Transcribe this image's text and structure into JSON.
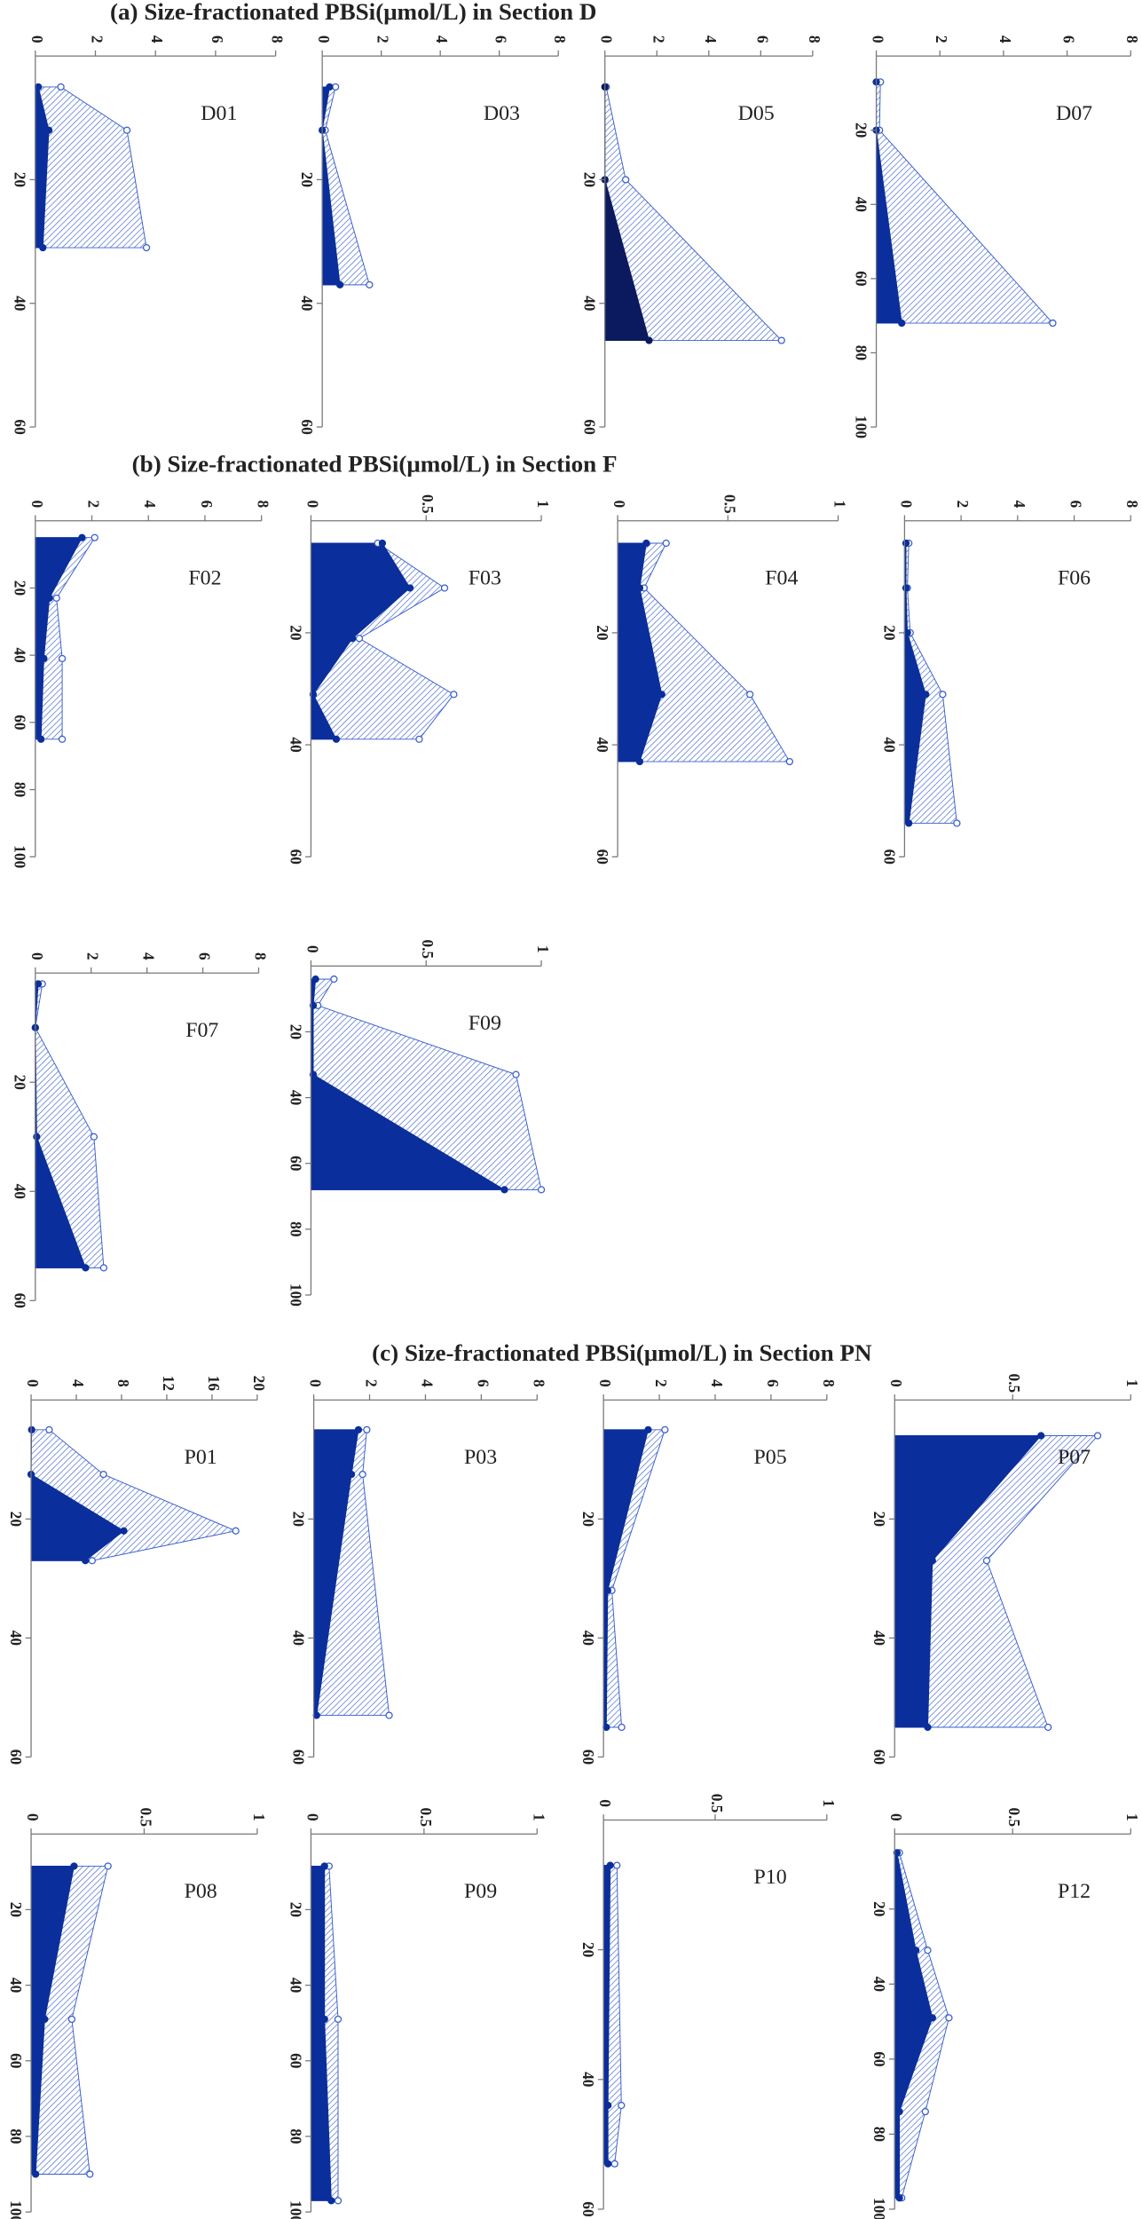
{
  "headers": [
    "(a) Size-fractionated PBSi(μmol/L) in Section D",
    "(b) Size-fractionated PBSi(μmol/L) in Section F",
    "(c) Size-fractionated PBSi(μmol/L) in Section PN"
  ],
  "chart_data": [
    {
      "type": "area",
      "title": "D01",
      "xlim": [
        0,
        8
      ],
      "xticks": [
        0,
        2,
        4,
        6,
        8
      ],
      "ylim": [
        0,
        60
      ],
      "yticks": [
        20,
        40,
        60
      ],
      "depth": [
        5,
        12,
        31
      ],
      "series": [
        {
          "color": "#3a5fcd",
          "hatch": true,
          "values": [
            0.85,
            3.05,
            3.7
          ]
        },
        {
          "color": "#0a2f9c",
          "hatch": false,
          "values": [
            0.1,
            0.45,
            0.25
          ]
        }
      ]
    },
    {
      "type": "area",
      "title": "D03",
      "xlim": [
        0,
        8
      ],
      "xticks": [
        0,
        2,
        4,
        6,
        8
      ],
      "ylim": [
        0,
        60
      ],
      "yticks": [
        20,
        40,
        60
      ],
      "depth": [
        5,
        12,
        37
      ],
      "series": [
        {
          "color": "#3a5fcd",
          "hatch": true,
          "values": [
            0.45,
            0.1,
            1.6
          ]
        },
        {
          "color": "#0a2f9c",
          "hatch": false,
          "values": [
            0.25,
            0,
            0.6
          ]
        }
      ]
    },
    {
      "type": "area",
      "title": "D05",
      "xlim": [
        0,
        8
      ],
      "xticks": [
        0,
        2,
        4,
        6,
        8
      ],
      "ylim": [
        0,
        60
      ],
      "yticks": [
        20,
        40,
        60
      ],
      "depth": [
        5,
        20,
        46
      ],
      "series": [
        {
          "color": "#3a5fcd",
          "hatch": true,
          "values": [
            0.05,
            0.8,
            6.8
          ]
        },
        {
          "color": "#0b1a5e",
          "hatch": false,
          "values": [
            0,
            0,
            1.7
          ]
        }
      ]
    },
    {
      "type": "area",
      "title": "D07",
      "xlim": [
        0,
        8
      ],
      "xticks": [
        0,
        2,
        4,
        6,
        8
      ],
      "ylim": [
        0,
        100
      ],
      "yticks": [
        20,
        40,
        60,
        80,
        100
      ],
      "depth": [
        7,
        20,
        72
      ],
      "series": [
        {
          "color": "#3a5fcd",
          "hatch": true,
          "values": [
            0.13,
            0.1,
            5.55
          ]
        },
        {
          "color": "#0a2f9c",
          "hatch": false,
          "values": [
            0,
            0,
            0.8
          ]
        }
      ]
    },
    {
      "type": "area",
      "title": "F02",
      "xlim": [
        0,
        8
      ],
      "xticks": [
        0,
        2,
        4,
        6,
        8
      ],
      "ylim": [
        0,
        100
      ],
      "yticks": [
        20,
        40,
        60,
        80,
        100
      ],
      "depth": [
        5,
        23,
        41,
        65
      ],
      "series": [
        {
          "color": "#3a5fcd",
          "hatch": true,
          "values": [
            2.1,
            0.75,
            0.95,
            0.95
          ]
        },
        {
          "color": "#0a2f9c",
          "hatch": false,
          "values": [
            1.65,
            0.5,
            0.3,
            0.2
          ]
        }
      ]
    },
    {
      "type": "area",
      "title": "F03",
      "xlim": [
        0,
        1
      ],
      "xticks": [
        0,
        0.5,
        1
      ],
      "ylim": [
        0,
        60
      ],
      "yticks": [
        20,
        40,
        60
      ],
      "depth": [
        4,
        12,
        21,
        31,
        39
      ],
      "series": [
        {
          "color": "#3a5fcd",
          "hatch": true,
          "values": [
            0.29,
            0.58,
            0.21,
            0.62,
            0.47
          ]
        },
        {
          "color": "#0a2f9c",
          "hatch": false,
          "values": [
            0.31,
            0.43,
            0.18,
            0.01,
            0.11
          ]
        }
      ]
    },
    {
      "type": "area",
      "title": "F04",
      "xlim": [
        0,
        1
      ],
      "xticks": [
        0,
        0.5,
        1
      ],
      "ylim": [
        0,
        60
      ],
      "yticks": [
        20,
        40,
        60
      ],
      "depth": [
        4,
        12,
        31,
        43
      ],
      "series": [
        {
          "color": "#3a5fcd",
          "hatch": true,
          "values": [
            0.22,
            0.12,
            0.6,
            0.78
          ]
        },
        {
          "color": "#0a2f9c",
          "hatch": false,
          "values": [
            0.13,
            0.1,
            0.2,
            0.1
          ]
        }
      ]
    },
    {
      "type": "area",
      "title": "F06",
      "xlim": [
        0,
        8
      ],
      "xticks": [
        0,
        2,
        4,
        6,
        8
      ],
      "ylim": [
        0,
        60
      ],
      "yticks": [
        20,
        40,
        60
      ],
      "depth": [
        4,
        12,
        20,
        31,
        54
      ],
      "series": [
        {
          "color": "#3a5fcd",
          "hatch": true,
          "values": [
            0.15,
            0.1,
            0.2,
            1.35,
            1.85
          ]
        },
        {
          "color": "#0a2f9c",
          "hatch": false,
          "values": [
            0.05,
            0.05,
            0.1,
            0.75,
            0.15
          ]
        }
      ]
    },
    {
      "type": "area",
      "title": "F07",
      "xlim": [
        0,
        8
      ],
      "xticks": [
        0,
        2,
        4,
        6,
        8
      ],
      "ylim": [
        0,
        60
      ],
      "yticks": [
        20,
        40,
        60
      ],
      "depth": [
        2,
        10,
        30,
        54
      ],
      "series": [
        {
          "color": "#3a5fcd",
          "hatch": true,
          "values": [
            0.25,
            0,
            2.1,
            2.45
          ]
        },
        {
          "color": "#0a2f9c",
          "hatch": false,
          "values": [
            0.1,
            0,
            0.05,
            1.8
          ]
        }
      ]
    },
    {
      "type": "area",
      "title": "F09",
      "xlim": [
        0,
        1
      ],
      "xticks": [
        0,
        0.5,
        1
      ],
      "ylim": [
        0,
        100
      ],
      "yticks": [
        20,
        40,
        60,
        80,
        100
      ],
      "depth": [
        4,
        12,
        33,
        68
      ],
      "series": [
        {
          "color": "#3a5fcd",
          "hatch": true,
          "values": [
            0.1,
            0.03,
            0.89,
            1.0
          ]
        },
        {
          "color": "#0a2f9c",
          "hatch": false,
          "values": [
            0.02,
            0.01,
            0.01,
            0.84
          ]
        }
      ]
    },
    {
      "type": "area",
      "title": "P01",
      "xlim": [
        0,
        20
      ],
      "xticks": [
        0,
        4,
        8,
        12,
        16,
        20
      ],
      "ylim": [
        0,
        60
      ],
      "yticks": [
        20,
        40,
        60
      ],
      "depth": [
        5,
        12.5,
        22,
        27
      ],
      "series": [
        {
          "color": "#3a5fcd",
          "hatch": true,
          "values": [
            1.6,
            6.4,
            18.1,
            5.4
          ]
        },
        {
          "color": "#0a2f9c",
          "hatch": false,
          "values": [
            0.05,
            0,
            8.2,
            4.8
          ]
        }
      ]
    },
    {
      "type": "area",
      "title": "P03",
      "xlim": [
        0,
        8
      ],
      "xticks": [
        0,
        2,
        4,
        6,
        8
      ],
      "ylim": [
        0,
        60
      ],
      "yticks": [
        20,
        40,
        60
      ],
      "depth": [
        5,
        12.5,
        53
      ],
      "series": [
        {
          "color": "#3a5fcd",
          "hatch": true,
          "values": [
            1.9,
            1.75,
            2.7
          ]
        },
        {
          "color": "#0a2f9c",
          "hatch": false,
          "values": [
            1.6,
            1.35,
            0.1
          ]
        }
      ]
    },
    {
      "type": "area",
      "title": "P05",
      "xlim": [
        0,
        8
      ],
      "xticks": [
        0,
        2,
        4,
        6,
        8
      ],
      "ylim": [
        0,
        60
      ],
      "yticks": [
        20,
        40,
        60
      ],
      "depth": [
        5,
        32,
        55
      ],
      "series": [
        {
          "color": "#3a5fcd",
          "hatch": true,
          "values": [
            2.2,
            0.3,
            0.65
          ]
        },
        {
          "color": "#0a2f9c",
          "hatch": false,
          "values": [
            1.6,
            0.15,
            0.1
          ]
        }
      ]
    },
    {
      "type": "area",
      "title": "P07",
      "xlim": [
        0,
        1
      ],
      "xticks": [
        0,
        0.5,
        1
      ],
      "ylim": [
        0,
        60
      ],
      "yticks": [
        20,
        40,
        60
      ],
      "depth": [
        6,
        27,
        55
      ],
      "series": [
        {
          "color": "#3a5fcd",
          "hatch": true,
          "values": [
            0.86,
            0.39,
            0.65
          ]
        },
        {
          "color": "#0a2f9c",
          "hatch": false,
          "values": [
            0.62,
            0.16,
            0.14
          ]
        }
      ]
    },
    {
      "type": "area",
      "title": "P08",
      "xlim": [
        0,
        1
      ],
      "xticks": [
        0,
        0.5,
        1
      ],
      "ylim": [
        0,
        100
      ],
      "yticks": [
        20,
        40,
        60,
        80,
        100
      ],
      "depth": [
        8.5,
        49,
        90
      ],
      "series": [
        {
          "color": "#3a5fcd",
          "hatch": true,
          "values": [
            0.34,
            0.18,
            0.26
          ]
        },
        {
          "color": "#0a2f9c",
          "hatch": false,
          "values": [
            0.19,
            0.06,
            0.02
          ]
        }
      ]
    },
    {
      "type": "area",
      "title": "P09",
      "xlim": [
        0,
        1
      ],
      "xticks": [
        0,
        0.5,
        1
      ],
      "ylim": [
        0,
        100
      ],
      "yticks": [
        20,
        40,
        60,
        80,
        100
      ],
      "depth": [
        8.5,
        49,
        97
      ],
      "series": [
        {
          "color": "#3a5fcd",
          "hatch": true,
          "values": [
            0.08,
            0.12,
            0.12
          ]
        },
        {
          "color": "#0a2f9c",
          "hatch": false,
          "values": [
            0.06,
            0.06,
            0.09
          ]
        }
      ]
    },
    {
      "type": "area",
      "title": "P10",
      "xlim": [
        0,
        1
      ],
      "xticks": [
        0,
        0.5,
        1
      ],
      "ylim": [
        0,
        60
      ],
      "yticks": [
        20,
        40,
        60
      ],
      "depth": [
        7,
        44,
        53
      ],
      "series": [
        {
          "color": "#3a5fcd",
          "hatch": true,
          "values": [
            0.06,
            0.08,
            0.05
          ]
        },
        {
          "color": "#0a2f9c",
          "hatch": false,
          "values": [
            0.03,
            0.02,
            0.02
          ]
        }
      ]
    },
    {
      "type": "area",
      "title": "P12",
      "xlim": [
        0,
        1
      ],
      "xticks": [
        0,
        0.5,
        1
      ],
      "ylim": [
        0,
        100
      ],
      "yticks": [
        20,
        40,
        60,
        80,
        100
      ],
      "depth": [
        5,
        31,
        49,
        74,
        97
      ],
      "series": [
        {
          "color": "#3a5fcd",
          "hatch": true,
          "values": [
            0.02,
            0.14,
            0.23,
            0.13,
            0.03
          ]
        },
        {
          "color": "#0a2f9c",
          "hatch": false,
          "values": [
            0.01,
            0.09,
            0.16,
            0.02,
            0.02
          ]
        }
      ]
    }
  ]
}
